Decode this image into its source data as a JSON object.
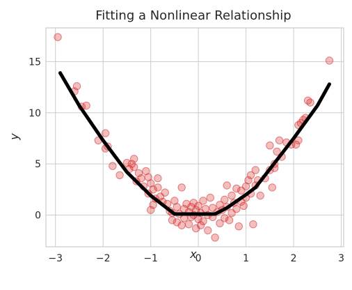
{
  "chart_data": {
    "type": "scatter",
    "title": "Fitting a Nonlinear Relationship",
    "xlabel": "x",
    "ylabel": "y",
    "xlim": [
      -3.2,
      3.05
    ],
    "ylim": [
      -3.1,
      18.3
    ],
    "xticks": [
      -3,
      -2,
      -1,
      0,
      1,
      2,
      3
    ],
    "xtick_labels": [
      "−3",
      "−2",
      "−1",
      "0",
      "1",
      "2",
      "3"
    ],
    "yticks": [
      0,
      5,
      10,
      15
    ],
    "ytick_labels": [
      "0",
      "5",
      "10",
      "15"
    ],
    "grid": true,
    "point_color": "#d62728",
    "line_color": "#000000",
    "series": [
      {
        "type": "scatter",
        "points": [
          [
            -2.95,
            17.4
          ],
          [
            -2.55,
            12.6
          ],
          [
            -2.6,
            12.1
          ],
          [
            -2.45,
            10.6
          ],
          [
            -2.35,
            10.7
          ],
          [
            -2.1,
            7.3
          ],
          [
            -1.95,
            8.0
          ],
          [
            -1.9,
            6.7
          ],
          [
            -1.95,
            6.5
          ],
          [
            -1.8,
            4.8
          ],
          [
            -1.65,
            3.9
          ],
          [
            -1.5,
            5.1
          ],
          [
            -1.45,
            4.5
          ],
          [
            -1.4,
            5.0
          ],
          [
            -1.35,
            5.5
          ],
          [
            -1.35,
            4.7
          ],
          [
            -1.3,
            3.3
          ],
          [
            -1.25,
            4.1
          ],
          [
            -1.2,
            3.6
          ],
          [
            -1.15,
            2.8
          ],
          [
            -1.1,
            4.3
          ],
          [
            -1.05,
            3.7
          ],
          [
            -1.05,
            2.1
          ],
          [
            -1.0,
            0.5
          ],
          [
            -1.0,
            3.1
          ],
          [
            -0.95,
            2.5
          ],
          [
            -0.9,
            1.6
          ],
          [
            -0.95,
            1.0
          ],
          [
            -0.85,
            2.7
          ],
          [
            -0.85,
            3.6
          ],
          [
            -0.8,
            1.8
          ],
          [
            -0.75,
            1.3
          ],
          [
            -0.7,
            2.2
          ],
          [
            -0.65,
            1.1
          ],
          [
            -0.6,
            0.4
          ],
          [
            -0.55,
            0.2
          ],
          [
            -0.55,
            -0.5
          ],
          [
            -0.5,
            1.4
          ],
          [
            -0.45,
            0.8
          ],
          [
            -0.45,
            -0.7
          ],
          [
            -0.4,
            0.1
          ],
          [
            -0.35,
            -1.0
          ],
          [
            -0.35,
            2.7
          ],
          [
            -0.3,
            0.6
          ],
          [
            -0.3,
            -0.3
          ],
          [
            -0.25,
            1.1
          ],
          [
            -0.2,
            0.3
          ],
          [
            -0.2,
            -0.9
          ],
          [
            -0.15,
            0.8
          ],
          [
            -0.15,
            -0.2
          ],
          [
            -0.1,
            1.2
          ],
          [
            -0.1,
            0.0
          ],
          [
            -0.05,
            -1.3
          ],
          [
            -0.05,
            0.5
          ],
          [
            0.0,
            0.9
          ],
          [
            0.0,
            -0.4
          ],
          [
            0.05,
            0.2
          ],
          [
            0.05,
            -1.0
          ],
          [
            0.1,
            1.4
          ],
          [
            0.1,
            -0.6
          ],
          [
            0.15,
            0.6
          ],
          [
            0.2,
            -1.5
          ],
          [
            0.2,
            0.0
          ],
          [
            0.25,
            1.7
          ],
          [
            0.3,
            -0.2
          ],
          [
            0.3,
            0.7
          ],
          [
            0.35,
            -2.2
          ],
          [
            0.4,
            0.3
          ],
          [
            0.45,
            1.0
          ],
          [
            0.45,
            -0.8
          ],
          [
            0.5,
            0.5
          ],
          [
            0.55,
            1.5
          ],
          [
            0.55,
            -0.3
          ],
          [
            0.6,
            2.9
          ],
          [
            0.6,
            0.8
          ],
          [
            0.65,
            -0.5
          ],
          [
            0.7,
            1.9
          ],
          [
            0.7,
            0.2
          ],
          [
            0.75,
            1.2
          ],
          [
            0.8,
            2.6
          ],
          [
            0.8,
            0.6
          ],
          [
            0.85,
            -1.1
          ],
          [
            0.9,
            2.4
          ],
          [
            0.9,
            1.3
          ],
          [
            0.95,
            0.9
          ],
          [
            1.0,
            2.8
          ],
          [
            1.0,
            1.7
          ],
          [
            1.05,
            3.4
          ],
          [
            1.1,
            2.1
          ],
          [
            1.1,
            3.9
          ],
          [
            1.15,
            -0.9
          ],
          [
            1.2,
            4.4
          ],
          [
            1.2,
            2.9
          ],
          [
            1.25,
            3.4
          ],
          [
            1.3,
            1.9
          ],
          [
            1.4,
            3.6
          ],
          [
            1.5,
            4.4
          ],
          [
            1.55,
            2.7
          ],
          [
            1.6,
            5.0
          ],
          [
            1.6,
            4.6
          ],
          [
            1.65,
            6.2
          ],
          [
            1.7,
            7.3
          ],
          [
            1.75,
            5.7
          ],
          [
            1.5,
            6.8
          ],
          [
            1.85,
            7.1
          ],
          [
            1.95,
            6.9
          ],
          [
            2.05,
            6.9
          ],
          [
            2.1,
            8.8
          ],
          [
            2.15,
            9.0
          ],
          [
            2.1,
            7.3
          ],
          [
            2.2,
            9.3
          ],
          [
            2.25,
            9.5
          ],
          [
            2.3,
            11.2
          ],
          [
            2.35,
            11.0
          ],
          [
            2.75,
            15.1
          ]
        ]
      },
      {
        "type": "line",
        "points": [
          [
            -2.9,
            13.9
          ],
          [
            -2.5,
            10.7
          ],
          [
            -2.0,
            7.3
          ],
          [
            -1.5,
            4.2
          ],
          [
            -1.0,
            1.9
          ],
          [
            -0.5,
            0.1
          ],
          [
            0.0,
            0.1
          ],
          [
            0.35,
            0.1
          ],
          [
            0.6,
            0.7
          ],
          [
            1.0,
            2.0
          ],
          [
            1.2,
            2.7
          ],
          [
            1.5,
            4.5
          ],
          [
            2.0,
            7.5
          ],
          [
            2.5,
            10.7
          ],
          [
            2.75,
            12.8
          ]
        ]
      }
    ]
  }
}
